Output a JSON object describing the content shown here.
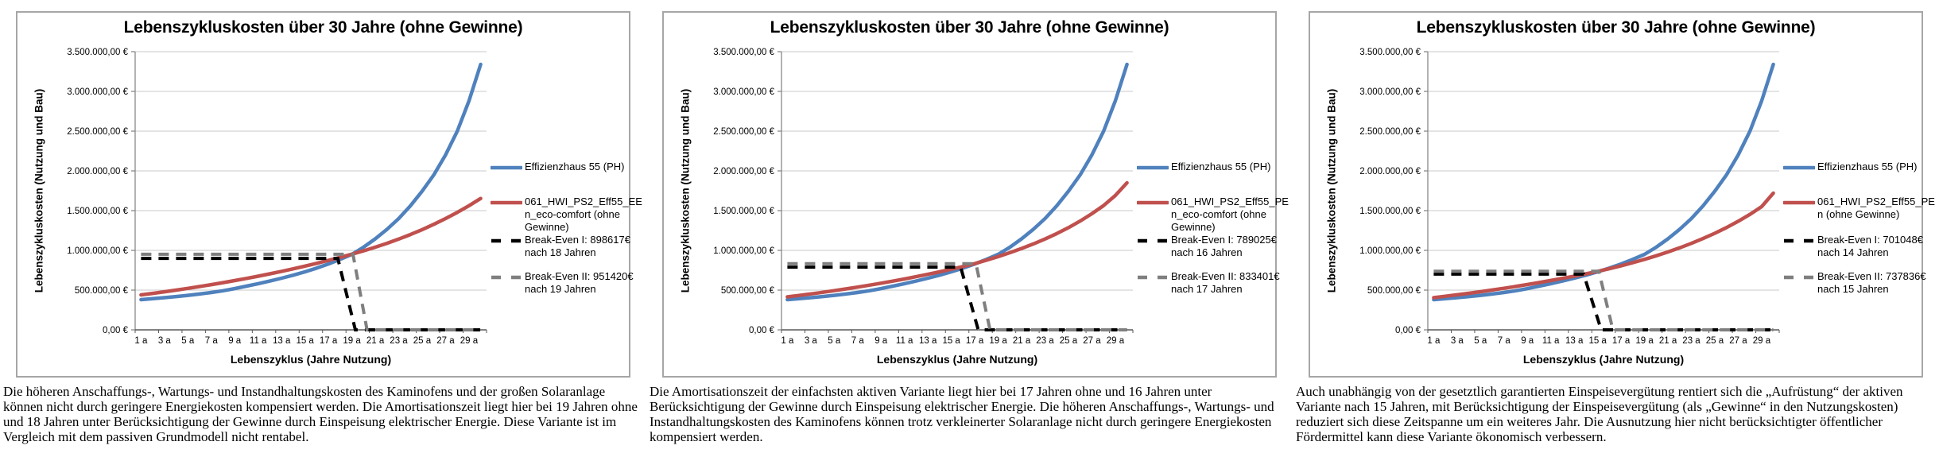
{
  "shared": {
    "colors": {
      "series_blue": "#4F81BD",
      "series_red": "#C0504D",
      "break_even_1": "#000000",
      "break_even_2": "#7F7F7F",
      "gridline": "#C9C9C9",
      "axis": "#808080",
      "x_axis": "#595959",
      "box_border": "#A6A6A6"
    }
  },
  "chart_data": [
    {
      "type": "line",
      "title": "Lebenszykluskosten über 30 Jahre (ohne Gewinne)",
      "ylabel": "Lebenszykluskosten (Nutzung und Bau)",
      "xlabel": "Lebenszyklus (Jahre Nutzung)",
      "ylim": [
        0,
        3500000
      ],
      "grid": true,
      "legend_position": "right",
      "y_tick_labels": [
        "3.500.000,00 €",
        "3.000.000,00 €",
        "2.500.000,00 €",
        "2.000.000,00 €",
        "1.500.000,00 €",
        "1.000.000,00 €",
        "500.000,00 €",
        "0,00 €"
      ],
      "x_tick_labels": [
        "1 a",
        "3 a",
        "5 a",
        "7 a",
        "9 a",
        "11 a",
        "13 a",
        "15 a",
        "17 a",
        "19 a",
        "21 a",
        "23 a",
        "25 a",
        "27 a",
        "29 a"
      ],
      "x_years": {
        "start": 1,
        "end": 30
      },
      "series": [
        {
          "name": "Effizienzhaus 55 (PH)",
          "legend_lines": [
            "Effizienzhaus 55 (PH)"
          ],
          "color": "#4F81BD",
          "style": "solid",
          "values": [
            380000,
            392000,
            405000,
            419000,
            434000,
            451000,
            470000,
            492000,
            519000,
            550000,
            581000,
            614000,
            650000,
            688000,
            730000,
            777000,
            829000,
            887000,
            950000,
            1040000,
            1145000,
            1265000,
            1400000,
            1560000,
            1745000,
            1950000,
            2200000,
            2500000,
            2880000,
            3340000
          ]
        },
        {
          "name": "061_HWI_PS2_Eff55_EEn_eco-comfort (ohne Gewinne)",
          "legend_lines": [
            "061_HWI_PS2_Eff55_EE",
            "n_eco-comfort (ohne",
            "Gewinne)"
          ],
          "color": "#C0504D",
          "style": "solid",
          "values": [
            440000,
            459000,
            479000,
            500000,
            522000,
            545000,
            569000,
            594000,
            620000,
            647000,
            675000,
            705000,
            736000,
            768000,
            802000,
            837000,
            874000,
            912000,
            952000,
            994000,
            1040000,
            1089000,
            1142000,
            1199000,
            1261000,
            1328000,
            1400000,
            1478000,
            1562000,
            1653000
          ]
        },
        {
          "name": "Break-Even I: 898617€ nach 18 Jahren",
          "legend_lines": [
            "Break-Even I: 898617€",
            "nach 18 Jahren"
          ],
          "color": "#000000",
          "style": "dashed",
          "break_even_value": 898617,
          "break_even_year": 18
        },
        {
          "name": "Break-Even II: 951420€ nach 19 Jahren",
          "legend_lines": [
            "Break-Even II: 951420€",
            "nach 19 Jahren"
          ],
          "color": "#7F7F7F",
          "style": "dashed",
          "break_even_value": 951420,
          "break_even_year": 19
        }
      ],
      "caption": "Die höheren Anschaffungs-, Wartungs- und Instandhaltungskosten des Kaminofens und der großen Solaranlage können nicht durch geringere Energiekosten kompensiert werden. Die Amortisationszeit liegt hier bei 19 Jahren ohne und 18 Jahren unter Berücksichtigung der Gewinne durch Einspeisung elektrischer Energie. Diese Variante ist im Vergleich mit dem passiven Grundmodell nicht rentabel."
    },
    {
      "type": "line",
      "title": "Lebenszykluskosten über 30 Jahre (ohne Gewinne)",
      "ylabel": "Lebenszykluskosten (Nutzung und Bau)",
      "xlabel": "Lebenszyklus (Jahre Nutzung)",
      "ylim": [
        0,
        3500000
      ],
      "grid": true,
      "legend_position": "right",
      "y_tick_labels": [
        "3.500.000,00 €",
        "3.000.000,00 €",
        "2.500.000,00 €",
        "2.000.000,00 €",
        "1.500.000,00 €",
        "1.000.000,00 €",
        "500.000,00 €",
        "0,00 €"
      ],
      "x_tick_labels": [
        "1 a",
        "3 a",
        "5 a",
        "7 a",
        "9 a",
        "11 a",
        "13 a",
        "15 a",
        "17 a",
        "19 a",
        "21 a",
        "23 a",
        "25 a",
        "27 a",
        "29 a"
      ],
      "x_years": {
        "start": 1,
        "end": 30
      },
      "series": [
        {
          "name": "Effizienzhaus 55 (PH)",
          "legend_lines": [
            "Effizienzhaus 55 (PH)"
          ],
          "color": "#4F81BD",
          "style": "solid",
          "values": [
            380000,
            392000,
            405000,
            419000,
            434000,
            451000,
            470000,
            492000,
            519000,
            550000,
            581000,
            614000,
            650000,
            688000,
            730000,
            777000,
            829000,
            887000,
            950000,
            1040000,
            1145000,
            1265000,
            1400000,
            1560000,
            1745000,
            1950000,
            2200000,
            2500000,
            2880000,
            3340000
          ]
        },
        {
          "name": "061_HWI_PS2_Eff55_PEn_eco-comfort (ohne Gewinne)",
          "legend_lines": [
            "061_HWI_PS2_Eff55_PE",
            "n_eco-comfort (ohne",
            "Gewinne)"
          ],
          "color": "#C0504D",
          "style": "solid",
          "values": [
            415000,
            433000,
            452000,
            472000,
            493000,
            515000,
            538000,
            562000,
            587000,
            613000,
            640000,
            669000,
            699000,
            730000,
            763000,
            797000,
            833000,
            876000,
            922000,
            971000,
            1024000,
            1081000,
            1143000,
            1211000,
            1286000,
            1369000,
            1461000,
            1564000,
            1690000,
            1850000
          ]
        },
        {
          "name": "Break-Even I: 789025€ nach 16 Jahren",
          "legend_lines": [
            "Break-Even I: 789025€",
            "nach 16 Jahren"
          ],
          "color": "#000000",
          "style": "dashed",
          "break_even_value": 789025,
          "break_even_year": 16
        },
        {
          "name": "Break-Even II: 833401€ nach 17 Jahren",
          "legend_lines": [
            "Break-Even II: 833401€",
            "nach 17 Jahren"
          ],
          "color": "#7F7F7F",
          "style": "dashed",
          "break_even_value": 833401,
          "break_even_year": 17
        }
      ],
      "caption": "Die Amortisationszeit der einfachsten aktiven Variante liegt hier bei 17 Jahren ohne und 16 Jahren unter Berücksichtigung der Gewinne durch Einspeisung elektrischer Energie. Die höheren Anschaffungs-, Wartungs- und Instandhaltungskosten des Kaminofens können trotz verkleinerter Solaranlage nicht durch geringere Energiekosten kompensiert werden."
    },
    {
      "type": "line",
      "title": "Lebenszykluskosten über 30 Jahre (ohne Gewinne)",
      "ylabel": "Lebenszykluskosten (Nutzung und Bau)",
      "xlabel": "Lebenszyklus (Jahre Nutzung)",
      "ylim": [
        0,
        3500000
      ],
      "grid": true,
      "legend_position": "right",
      "y_tick_labels": [
        "3.500.000,00 €",
        "3.000.000,00 €",
        "2.500.000,00 €",
        "2.000.000,00 €",
        "1.500.000,00 €",
        "1.000.000,00 €",
        "500.000,00 €",
        "0,00 €"
      ],
      "x_tick_labels": [
        "1 a",
        "3 a",
        "5 a",
        "7 a",
        "9 a",
        "11 a",
        "13 a",
        "15 a",
        "17 a",
        "19 a",
        "21 a",
        "23 a",
        "25 a",
        "27 a",
        "29 a"
      ],
      "x_years": {
        "start": 1,
        "end": 30
      },
      "series": [
        {
          "name": "Effizienzhaus 55 (PH)",
          "legend_lines": [
            "Effizienzhaus 55 (PH)"
          ],
          "color": "#4F81BD",
          "style": "solid",
          "values": [
            380000,
            392000,
            405000,
            419000,
            434000,
            451000,
            470000,
            492000,
            519000,
            550000,
            581000,
            614000,
            650000,
            688000,
            730000,
            777000,
            829000,
            887000,
            950000,
            1040000,
            1145000,
            1265000,
            1400000,
            1560000,
            1745000,
            1950000,
            2200000,
            2500000,
            2880000,
            3340000
          ]
        },
        {
          "name": "061_HWI_PS2_Eff55_PEn (ohne Gewinne)",
          "legend_lines": [
            "061_HWI_PS2_Eff55_PE",
            "n (ohne Gewinne)"
          ],
          "color": "#C0504D",
          "style": "solid",
          "values": [
            405000,
            423000,
            441000,
            460000,
            480000,
            501000,
            523000,
            546000,
            570000,
            595000,
            621000,
            648000,
            676000,
            705000,
            736000,
            770000,
            806000,
            845000,
            887000,
            932000,
            980000,
            1032000,
            1088000,
            1149000,
            1215000,
            1287000,
            1366000,
            1453000,
            1550000,
            1720000
          ]
        },
        {
          "name": "Break-Even I: 701048€ nach 14 Jahren",
          "legend_lines": [
            "Break-Even I: 701048€",
            "nach 14 Jahren"
          ],
          "color": "#000000",
          "style": "dashed",
          "break_even_value": 701048,
          "break_even_year": 14
        },
        {
          "name": "Break-Even II: 737836€ nach 15 Jahren",
          "legend_lines": [
            "Break-Even II: 737836€",
            "nach 15 Jahren"
          ],
          "color": "#7F7F7F",
          "style": "dashed",
          "break_even_value": 737836,
          "break_even_year": 15
        }
      ],
      "caption": "Auch unabhängig von der gesetztlich garantierten Einspeisevergütung rentiert sich die „Aufrüstung“ der aktiven Variante nach 15 Jahren, mit Berücksichtigung der Einspeisevergütung (als „Gewinne“ in den Nutzungskosten) reduziert sich diese Zeitspanne um ein weiteres Jahr. Die Ausnutzung hier nicht berücksichtigter öffentlicher Fördermittel kann diese Variante ökonomisch verbessern."
    }
  ]
}
